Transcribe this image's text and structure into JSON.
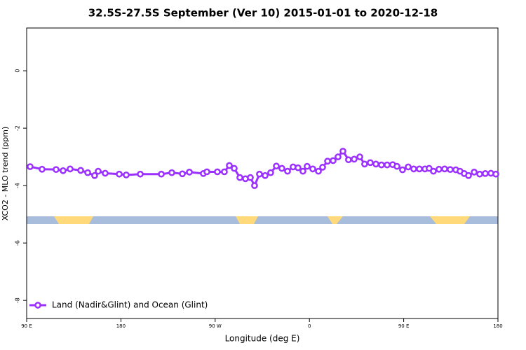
{
  "chart_data": {
    "type": "line",
    "title": "32.5S-27.5S September (Ver 10)   2015-01-01 to 2020-12-18",
    "x_label": "Longitude (deg E)",
    "y_label": "XCO2 - MLO trend (ppm)",
    "x": [
      93.3,
      104.7,
      118.1,
      124.8,
      131.5,
      141.6,
      148.3,
      154.9,
      158.3,
      165.0,
      178.4,
      185.1,
      198.5,
      218.6,
      228.6,
      238.7,
      245.4,
      258.7,
      262.1,
      272.1,
      278.8,
      283.5,
      288.2,
      293.6,
      298.9,
      303.6,
      307.6,
      312.3,
      317.7,
      323.0,
      328.4,
      333.7,
      339.1,
      344.4,
      349.1,
      353.8,
      357.8,
      363.2,
      368.6,
      372.6,
      377.3,
      382.6,
      387.3,
      392.0,
      397.3,
      402.7,
      408.1,
      412.7,
      418.1,
      423.5,
      428.8,
      434.2,
      439.5,
      443.6,
      448.9,
      454.3,
      459.6,
      465.0,
      470.3,
      474.3,
      478.4,
      483.7,
      489.1,
      494.4,
      499.8,
      503.8,
      507.8,
      511.9,
      517.3,
      522.6,
      527.9,
      533.3,
      538.0
    ],
    "series": [
      {
        "name": "Land (Nadir&Glint) and Ocean (Glint)",
        "color": "#9b30ff",
        "values": [
          -3.34,
          -3.43,
          -3.44,
          -3.48,
          -3.42,
          -3.47,
          -3.55,
          -3.65,
          -3.5,
          -3.57,
          -3.6,
          -3.63,
          -3.6,
          -3.6,
          -3.55,
          -3.59,
          -3.53,
          -3.58,
          -3.52,
          -3.52,
          -3.52,
          -3.3,
          -3.4,
          -3.72,
          -3.76,
          -3.72,
          -4.0,
          -3.6,
          -3.65,
          -3.55,
          -3.32,
          -3.4,
          -3.5,
          -3.35,
          -3.38,
          -3.5,
          -3.33,
          -3.42,
          -3.5,
          -3.36,
          -3.15,
          -3.13,
          -3.0,
          -2.8,
          -3.1,
          -3.08,
          -3.0,
          -3.25,
          -3.2,
          -3.25,
          -3.28,
          -3.28,
          -3.27,
          -3.33,
          -3.45,
          -3.35,
          -3.42,
          -3.42,
          -3.42,
          -3.4,
          -3.5,
          -3.43,
          -3.42,
          -3.44,
          -3.45,
          -3.5,
          -3.58,
          -3.65,
          -3.53,
          -3.6,
          -3.58,
          -3.57,
          -3.6
        ]
      }
    ],
    "xlim": [
      90,
      540
    ],
    "xticks": [
      {
        "value": 90,
        "label": "90 E"
      },
      180,
      {
        "value": 270,
        "label": "90 W"
      },
      {
        "value": 360,
        "label": "0"
      },
      {
        "value": 450,
        "label": "90 E"
      },
      {
        "value": 540,
        "label": "180"
      }
    ],
    "ylim": [
      -8.63,
      1.49
    ],
    "yticks": [
      -8,
      -6,
      -4,
      -2,
      0
    ],
    "legend": "bottom-left"
  }
}
